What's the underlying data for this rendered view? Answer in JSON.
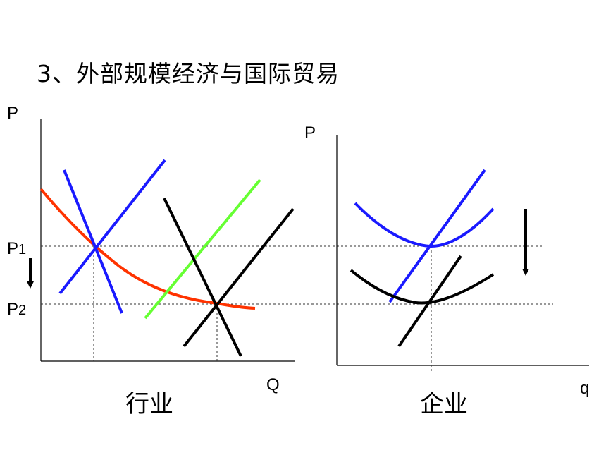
{
  "slide": {
    "title": "3、外部规模经济与国际贸易"
  },
  "left_panel": {
    "caption": "行业",
    "y_axis_label": "P",
    "x_axis_label": "Q",
    "price_labels": [
      "P1",
      "P2"
    ]
  },
  "right_panel": {
    "caption": "企业",
    "y_axis_label": "P",
    "x_axis_label": "q"
  },
  "colors": {
    "blue": "#1a1aff",
    "black": "#000000",
    "red": "#ff3300",
    "green": "#66ff33"
  }
}
